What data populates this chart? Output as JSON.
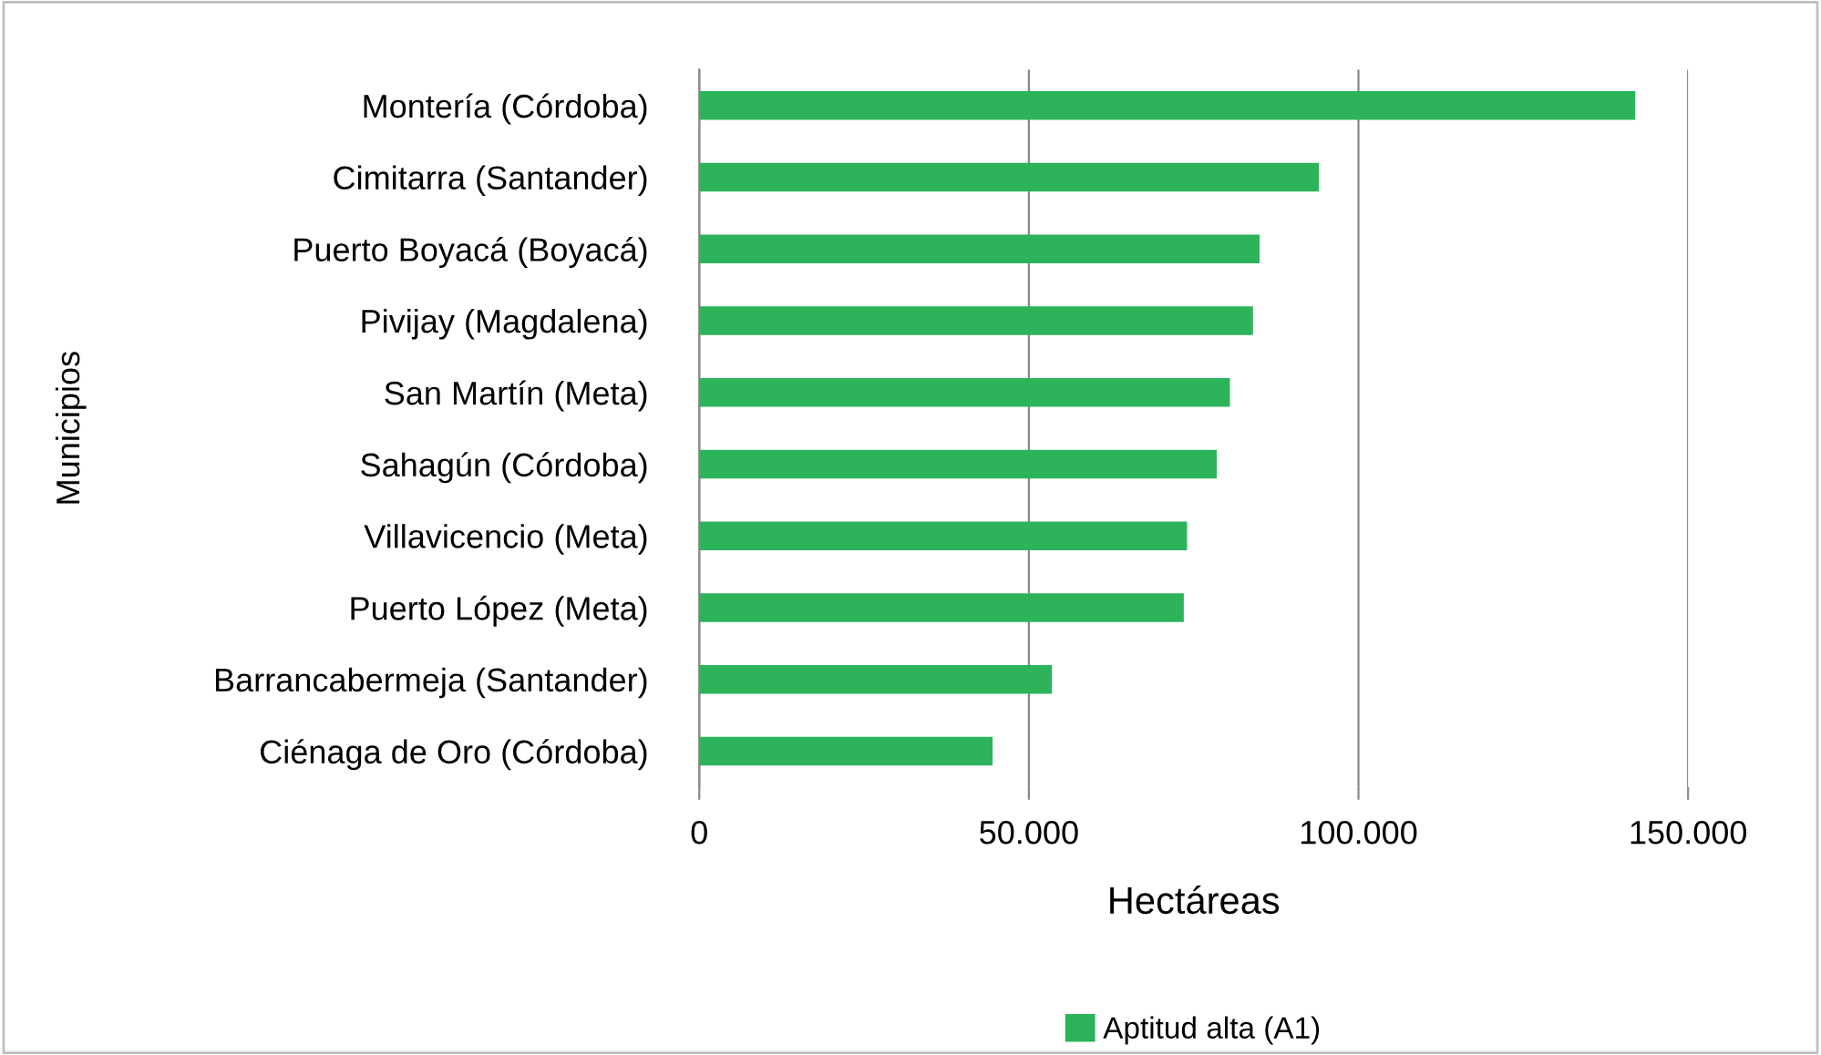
{
  "chart_data": {
    "type": "bar",
    "orientation": "horizontal",
    "xlabel": "Hectáreas",
    "ylabel": "Municipios",
    "categories": [
      "Montería (Córdoba)",
      "Cimitarra (Santander)",
      "Puerto Boyacá (Boyacá)",
      "Pivijay (Magdalena)",
      "San Martín (Meta)",
      "Sahagún (Córdoba)",
      "Villavicencio (Meta)",
      "Puerto López (Meta)",
      "Barrancabermeja (Santander)",
      "Ciénaga de Oro (Córdoba)"
    ],
    "series": [
      {
        "name": "Aptitud alta (A1)",
        "color": "#2db35a",
        "values": [
          142000,
          94000,
          85000,
          84000,
          80500,
          78500,
          74000,
          73500,
          53500,
          44500
        ]
      }
    ],
    "xlim": [
      0,
      150000
    ],
    "xticks": [
      {
        "value": 0,
        "label": "0"
      },
      {
        "value": 50000,
        "label": "50.000"
      },
      {
        "value": 100000,
        "label": "100.000"
      },
      {
        "value": 150000,
        "label": "150.000"
      }
    ],
    "grid": "x",
    "legend": "bottom"
  }
}
